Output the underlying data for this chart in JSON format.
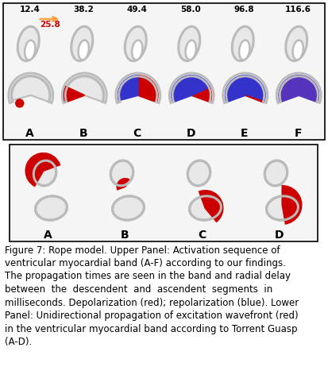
{
  "upper_panel": {
    "labels": [
      "A",
      "B",
      "C",
      "D",
      "E",
      "F"
    ],
    "times": [
      "12.4",
      "38.2",
      "49.4",
      "58.0",
      "96.8",
      "116.6"
    ],
    "radial_delay": "25.8",
    "arrow_color": "#FFA040",
    "delay_color": "#CC0000"
  },
  "lower_panel": {
    "labels": [
      "A",
      "B",
      "C",
      "D"
    ]
  },
  "caption_lines": [
    "Figure 7: Rope model. Upper Panel: Activation sequence of",
    "ventricular myocardial band (A-F) according to our findings.",
    "The propagation times are seen in the band and radial delay",
    "between  the  descendent  and  ascendent  segments  in",
    "milliseconds. Depolarization (red); repolarization (blue). Lower",
    "Panel: Unidirectional propagation of excitation wavefront (red)",
    "in the ventricular myocardial band according to Torrent Guasp",
    "(A-D)."
  ],
  "bg_color": "#FFFFFF",
  "border_color": "#000000",
  "label_fontsize": 9,
  "time_fontsize": 7.5,
  "caption_fontsize": 8.5,
  "figure_width": 4.13,
  "figure_height": 4.86,
  "dpi": 100
}
